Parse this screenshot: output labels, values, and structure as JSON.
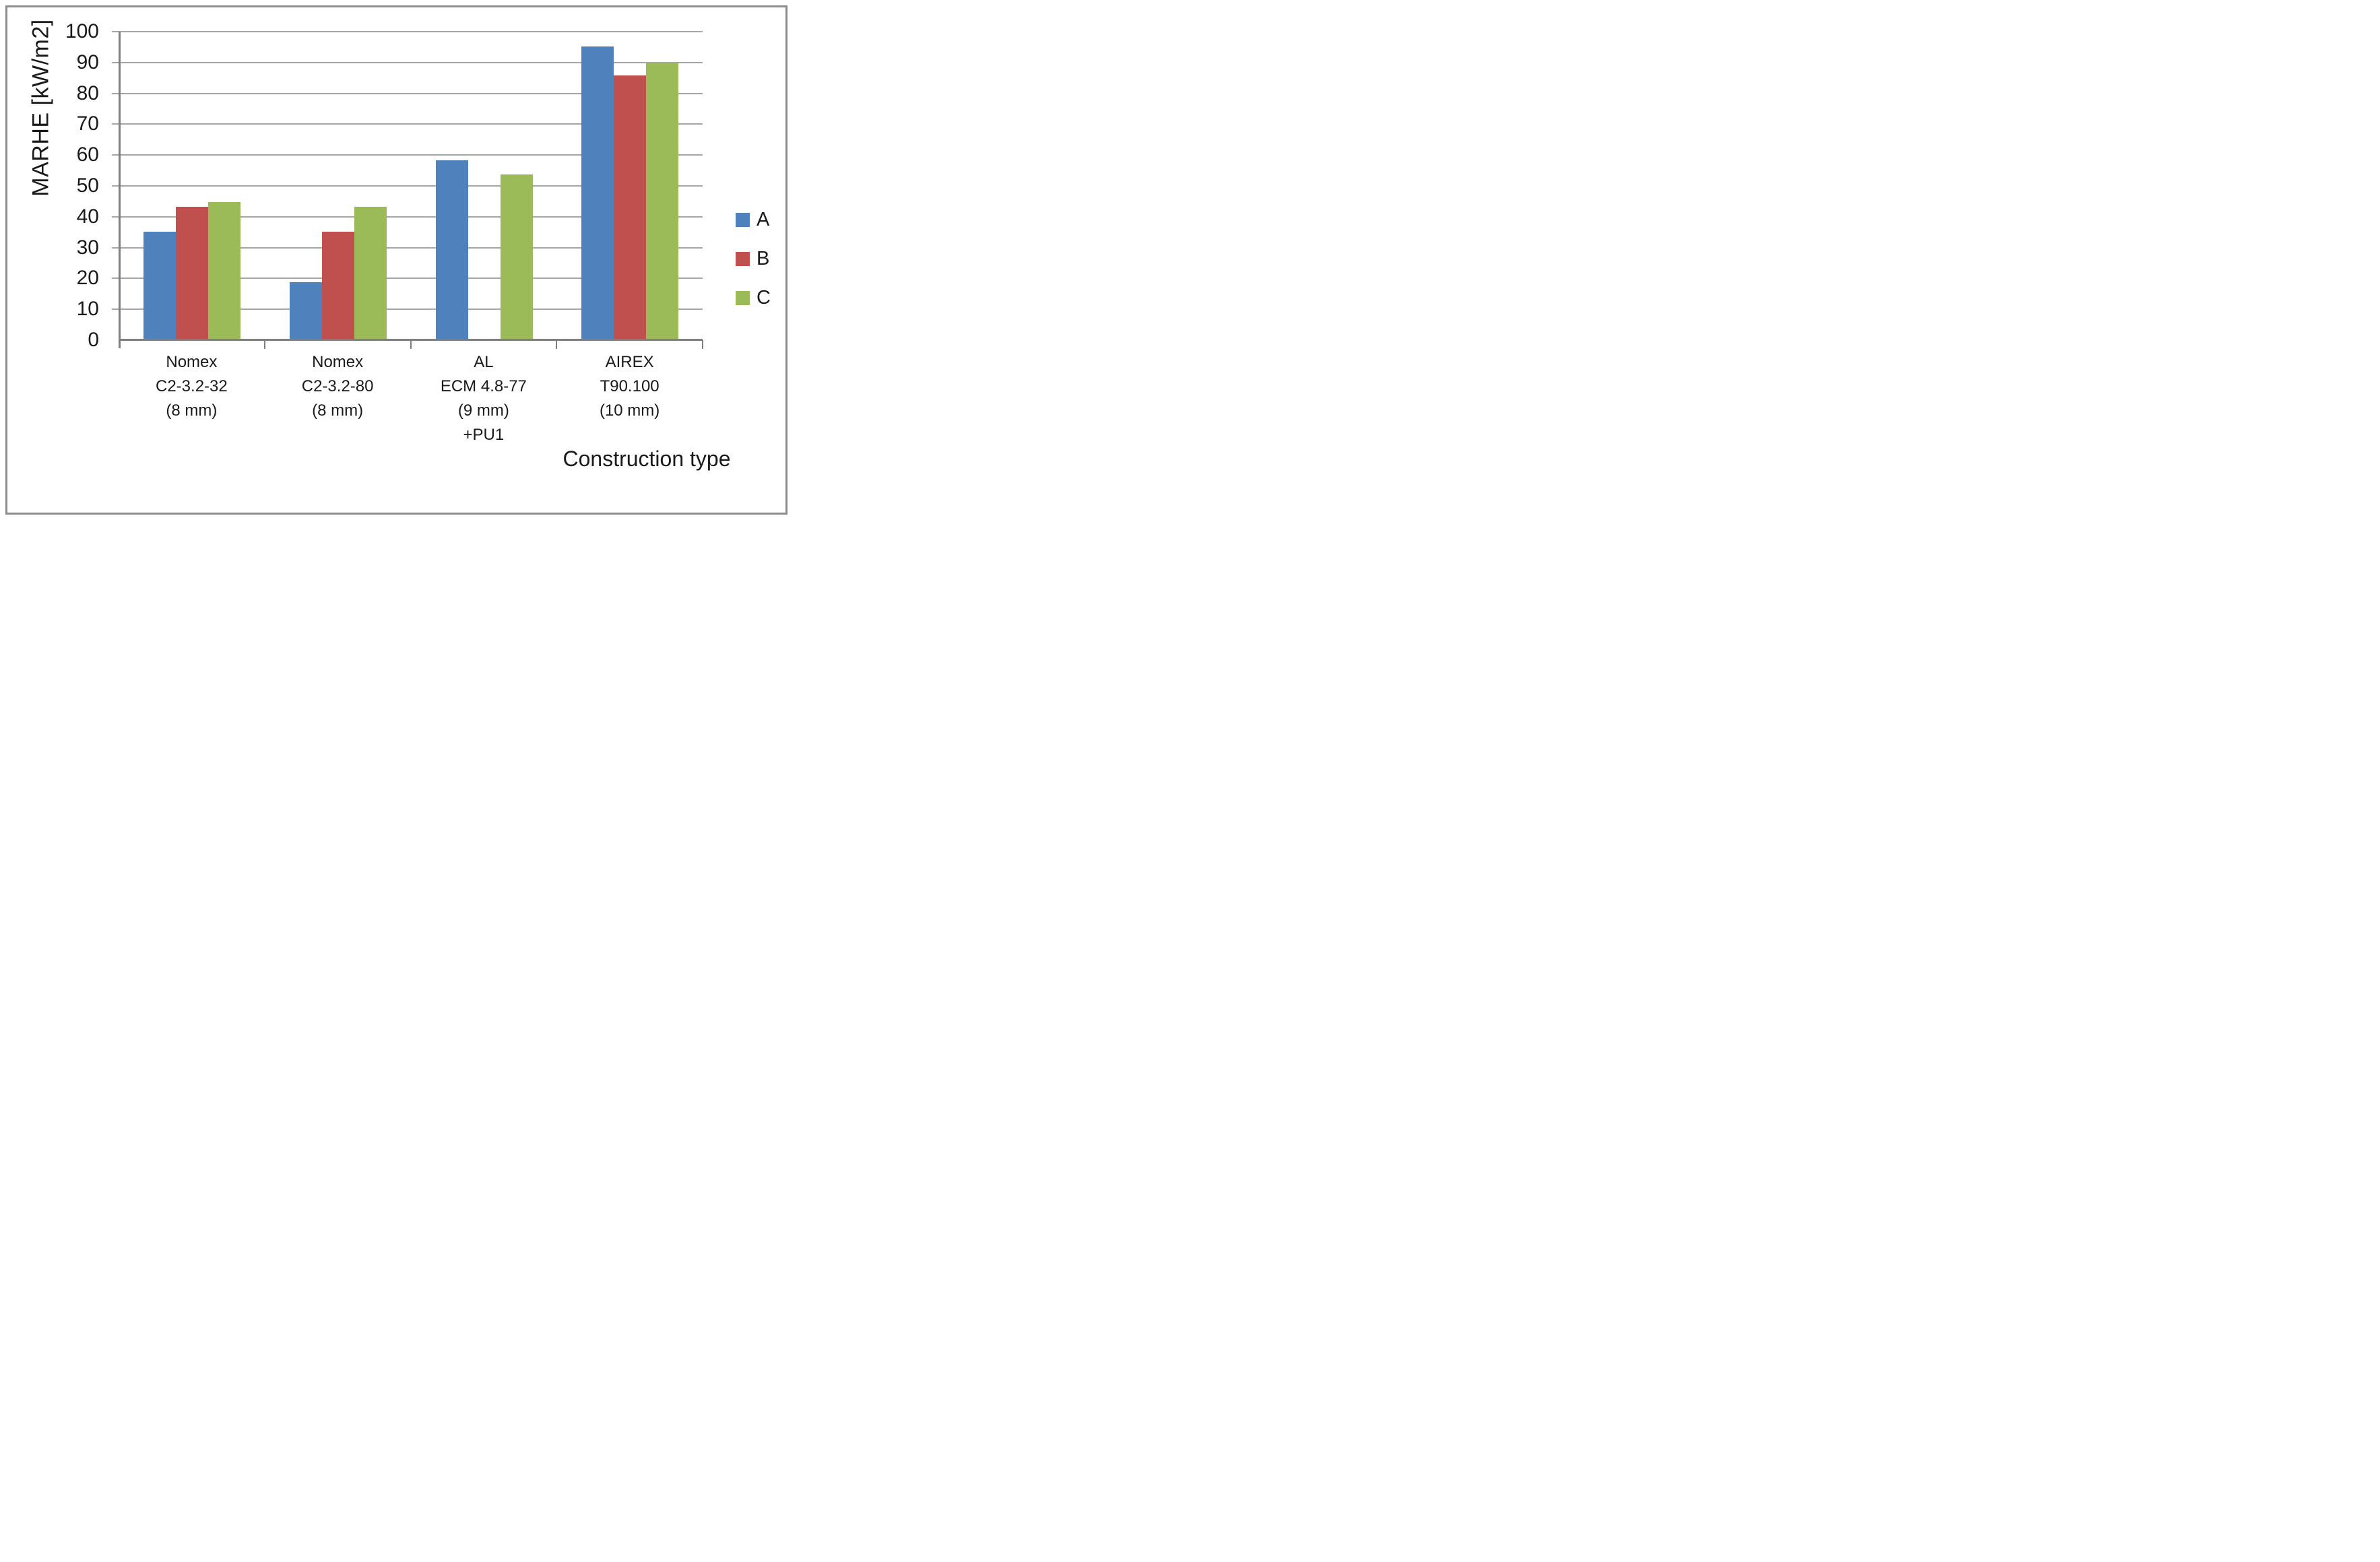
{
  "chart_data": {
    "type": "bar",
    "title": "",
    "ylabel": "MARHE [kW/m2]",
    "xlabel": "Construction type",
    "ylim": [
      0,
      100
    ],
    "ytick_step": 10,
    "yticks": [
      100,
      90,
      80,
      70,
      60,
      50,
      40,
      30,
      20,
      10,
      0
    ],
    "grid": true,
    "legend_position": "right",
    "categories": [
      {
        "lines": [
          "Nomex",
          "C2-3.2-32",
          "(8 mm)"
        ]
      },
      {
        "lines": [
          "Nomex",
          "C2-3.2-80",
          "(8 mm)"
        ]
      },
      {
        "lines": [
          "AL",
          "ECM 4.8-77",
          "(9 mm)",
          "+PU1"
        ]
      },
      {
        "lines": [
          "AIREX",
          "T90.100",
          "(10 mm)"
        ]
      }
    ],
    "series": [
      {
        "name": "A",
        "color": "#4f81bd",
        "values": [
          35,
          18.5,
          58,
          95
        ]
      },
      {
        "name": "B",
        "color": "#c0504d",
        "values": [
          43,
          35,
          null,
          85.5
        ]
      },
      {
        "name": "C",
        "color": "#9bbb59",
        "values": [
          44.5,
          43,
          53.5,
          89.5
        ]
      }
    ],
    "colors": {
      "gridline": "#a6a6a6",
      "axis": "#7f7f7f",
      "text": "#1a1a1a",
      "frame_border": "#8c8c8c",
      "background": "#ffffff"
    }
  }
}
